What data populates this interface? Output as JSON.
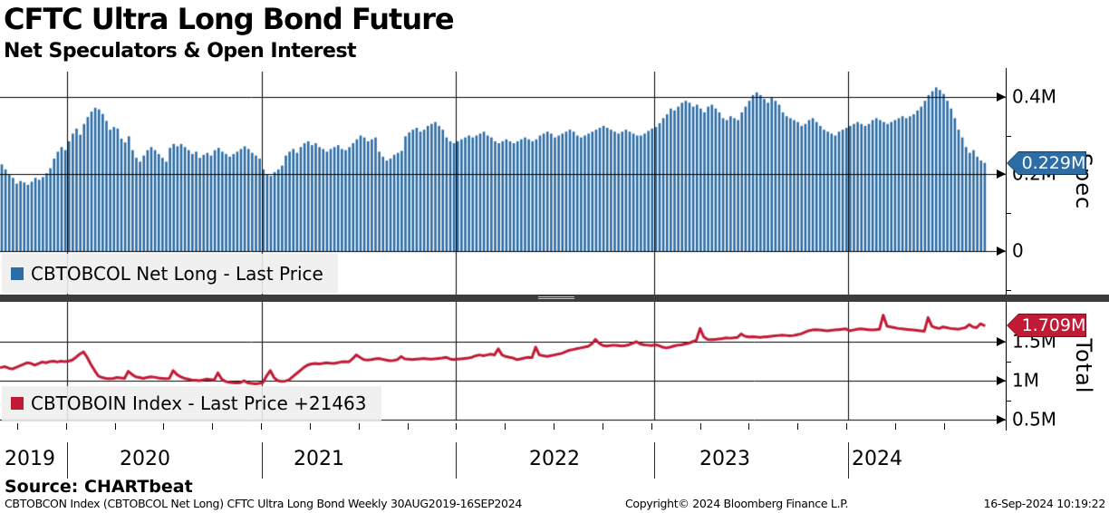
{
  "header": {
    "title": "CFTC Ultra Long Bond Future",
    "subtitle": "Net Speculators & Open Interest"
  },
  "top_panel": {
    "legend_label": "CBTOBCOL Net Long - Last Price",
    "axis_title": "Spec",
    "last_value_badge": "0.229M",
    "accent_color": "#2d6da6",
    "badge_border_color": "#16395c",
    "yticks": [
      {
        "label": "0.4M",
        "value": 0.4
      },
      {
        "label": "0.2M",
        "value": 0.2
      },
      {
        "label": "0",
        "value": 0
      }
    ]
  },
  "bottom_panel": {
    "legend_label": "CBTOBOIN Index - Last Price +21463",
    "axis_title": "Total",
    "last_value_badge": "1.709M",
    "accent_color": "#c11a35",
    "badge_border_color": "#7c0e20",
    "yticks": [
      {
        "label": "1.5M",
        "value": 1.5
      },
      {
        "label": "1M",
        "value": 1.0
      },
      {
        "label": "0.5M",
        "value": 0.5
      }
    ]
  },
  "xaxis": {
    "years": [
      "2019",
      "2020",
      "2021",
      "2022",
      "2023",
      "2024"
    ]
  },
  "source_line": "Source: CHARTbeat",
  "footer": {
    "left": "CBTOBCON Index (CBTOBCOL Net Long) CFTC Ultra Long Bond  Weekly 30AUG2019-16SEP2024",
    "center": "Copyright© 2024 Bloomberg Finance L.P.",
    "right": "16-Sep-2024 10:19:22"
  },
  "chart_data": [
    {
      "type": "bar",
      "name": "CBTOBCOL Net Long - Last Price",
      "units": "M contracts",
      "frequency": "weekly",
      "x_range": [
        "30AUG2019",
        "16SEP2024"
      ],
      "ylim": [
        0,
        0.466
      ],
      "gridlines": [
        0.4,
        0.2,
        0
      ],
      "minor_ticks": [
        0.3,
        0.1,
        -0.1
      ],
      "last_value": 0.229,
      "color": "#2d6da6",
      "values": [
        0.225,
        0.212,
        0.2,
        0.19,
        0.175,
        0.182,
        0.178,
        0.172,
        0.18,
        0.19,
        0.185,
        0.192,
        0.202,
        0.215,
        0.24,
        0.258,
        0.27,
        0.262,
        0.285,
        0.305,
        0.318,
        0.302,
        0.33,
        0.348,
        0.362,
        0.372,
        0.368,
        0.356,
        0.338,
        0.315,
        0.322,
        0.318,
        0.292,
        0.282,
        0.298,
        0.262,
        0.242,
        0.232,
        0.248,
        0.262,
        0.27,
        0.262,
        0.252,
        0.242,
        0.232,
        0.268,
        0.278,
        0.272,
        0.278,
        0.27,
        0.262,
        0.252,
        0.258,
        0.242,
        0.25,
        0.255,
        0.248,
        0.262,
        0.268,
        0.258,
        0.252,
        0.245,
        0.252,
        0.258,
        0.265,
        0.272,
        0.265,
        0.255,
        0.248,
        0.24,
        0.212,
        0.2,
        0.195,
        0.205,
        0.212,
        0.222,
        0.248,
        0.258,
        0.265,
        0.255,
        0.27,
        0.28,
        0.285,
        0.275,
        0.28,
        0.27,
        0.265,
        0.258,
        0.265,
        0.27,
        0.275,
        0.265,
        0.262,
        0.27,
        0.28,
        0.29,
        0.3,
        0.295,
        0.285,
        0.29,
        0.295,
        0.258,
        0.245,
        0.235,
        0.24,
        0.25,
        0.255,
        0.26,
        0.298,
        0.308,
        0.315,
        0.32,
        0.31,
        0.315,
        0.325,
        0.33,
        0.335,
        0.325,
        0.315,
        0.295,
        0.285,
        0.28,
        0.285,
        0.29,
        0.295,
        0.3,
        0.295,
        0.3,
        0.305,
        0.31,
        0.3,
        0.295,
        0.285,
        0.28,
        0.285,
        0.29,
        0.285,
        0.28,
        0.285,
        0.29,
        0.295,
        0.29,
        0.285,
        0.29,
        0.3,
        0.305,
        0.31,
        0.305,
        0.295,
        0.3,
        0.305,
        0.31,
        0.315,
        0.31,
        0.3,
        0.295,
        0.3,
        0.305,
        0.31,
        0.315,
        0.32,
        0.325,
        0.32,
        0.315,
        0.31,
        0.305,
        0.31,
        0.315,
        0.31,
        0.305,
        0.3,
        0.3,
        0.305,
        0.312,
        0.318,
        0.322,
        0.332,
        0.345,
        0.355,
        0.37,
        0.365,
        0.375,
        0.385,
        0.39,
        0.385,
        0.375,
        0.38,
        0.37,
        0.36,
        0.375,
        0.38,
        0.37,
        0.36,
        0.345,
        0.34,
        0.35,
        0.345,
        0.34,
        0.36,
        0.375,
        0.39,
        0.405,
        0.412,
        0.405,
        0.395,
        0.385,
        0.4,
        0.39,
        0.38,
        0.36,
        0.35,
        0.345,
        0.34,
        0.335,
        0.325,
        0.33,
        0.34,
        0.345,
        0.335,
        0.325,
        0.315,
        0.31,
        0.305,
        0.3,
        0.31,
        0.315,
        0.32,
        0.325,
        0.33,
        0.335,
        0.33,
        0.325,
        0.33,
        0.34,
        0.345,
        0.34,
        0.335,
        0.33,
        0.335,
        0.34,
        0.345,
        0.35,
        0.345,
        0.35,
        0.355,
        0.365,
        0.375,
        0.39,
        0.405,
        0.415,
        0.425,
        0.418,
        0.408,
        0.39,
        0.37,
        0.345,
        0.315,
        0.295,
        0.27,
        0.255,
        0.262,
        0.245,
        0.235,
        0.229
      ]
    },
    {
      "type": "line",
      "name": "CBTOBOIN Index - Last Price",
      "units": "M contracts",
      "frequency": "weekly",
      "x_range": [
        "30AUG2019",
        "16SEP2024"
      ],
      "ylim": [
        0.45,
        2.01
      ],
      "gridlines": [
        1.5,
        1.0,
        0.5
      ],
      "minor_ticks": [
        1.25,
        0.75
      ],
      "last_value": 1.709,
      "last_change": "+21463",
      "color": "#c11a35",
      "values": [
        1.17,
        1.18,
        1.16,
        1.15,
        1.17,
        1.19,
        1.21,
        1.23,
        1.22,
        1.2,
        1.22,
        1.24,
        1.23,
        1.245,
        1.25,
        1.24,
        1.25,
        1.245,
        1.25,
        1.265,
        1.3,
        1.34,
        1.37,
        1.3,
        1.21,
        1.13,
        1.06,
        1.04,
        1.03,
        1.025,
        1.03,
        1.04,
        1.035,
        1.03,
        1.12,
        1.08,
        1.05,
        1.04,
        1.03,
        1.04,
        1.05,
        1.045,
        1.035,
        1.03,
        1.025,
        1.03,
        1.13,
        1.08,
        1.05,
        1.03,
        1.02,
        1.01,
        1.005,
        1.0,
        1.01,
        1.02,
        1.015,
        1.01,
        1.1,
        1.02,
        0.99,
        0.98,
        0.975,
        0.97,
        0.975,
        1.0,
        0.97,
        0.965,
        0.96,
        0.965,
        0.975,
        1.06,
        1.13,
        1.04,
        1.0,
        0.99,
        0.995,
        1.01,
        1.05,
        1.09,
        1.13,
        1.17,
        1.2,
        1.215,
        1.22,
        1.215,
        1.22,
        1.23,
        1.225,
        1.22,
        1.23,
        1.24,
        1.245,
        1.24,
        1.28,
        1.33,
        1.3,
        1.27,
        1.265,
        1.27,
        1.28,
        1.285,
        1.275,
        1.265,
        1.255,
        1.26,
        1.27,
        1.31,
        1.28,
        1.275,
        1.27,
        1.275,
        1.28,
        1.285,
        1.28,
        1.275,
        1.28,
        1.285,
        1.29,
        1.3,
        1.28,
        1.27,
        1.275,
        1.28,
        1.285,
        1.29,
        1.3,
        1.32,
        1.33,
        1.32,
        1.33,
        1.34,
        1.33,
        1.41,
        1.33,
        1.31,
        1.3,
        1.29,
        1.27,
        1.28,
        1.29,
        1.3,
        1.295,
        1.43,
        1.33,
        1.32,
        1.31,
        1.32,
        1.33,
        1.34,
        1.35,
        1.37,
        1.39,
        1.4,
        1.41,
        1.42,
        1.43,
        1.44,
        1.47,
        1.53,
        1.48,
        1.45,
        1.445,
        1.45,
        1.455,
        1.45,
        1.445,
        1.45,
        1.46,
        1.48,
        1.5,
        1.47,
        1.46,
        1.455,
        1.45,
        1.46,
        1.45,
        1.43,
        1.42,
        1.43,
        1.445,
        1.455,
        1.46,
        1.47,
        1.48,
        1.5,
        1.52,
        1.67,
        1.56,
        1.53,
        1.525,
        1.53,
        1.535,
        1.54,
        1.55,
        1.545,
        1.55,
        1.555,
        1.6,
        1.57,
        1.56,
        1.565,
        1.56,
        1.555,
        1.56,
        1.565,
        1.57,
        1.575,
        1.58,
        1.585,
        1.58,
        1.575,
        1.58,
        1.59,
        1.6,
        1.62,
        1.64,
        1.65,
        1.655,
        1.65,
        1.645,
        1.64,
        1.645,
        1.65,
        1.655,
        1.66,
        1.665,
        1.64,
        1.65,
        1.66,
        1.665,
        1.66,
        1.655,
        1.65,
        1.655,
        1.66,
        1.84,
        1.7,
        1.69,
        1.68,
        1.67,
        1.665,
        1.66,
        1.655,
        1.65,
        1.645,
        1.64,
        1.635,
        1.81,
        1.7,
        1.68,
        1.67,
        1.69,
        1.68,
        1.67,
        1.665,
        1.66,
        1.67,
        1.68,
        1.72,
        1.69,
        1.68,
        1.73,
        1.709
      ]
    }
  ]
}
